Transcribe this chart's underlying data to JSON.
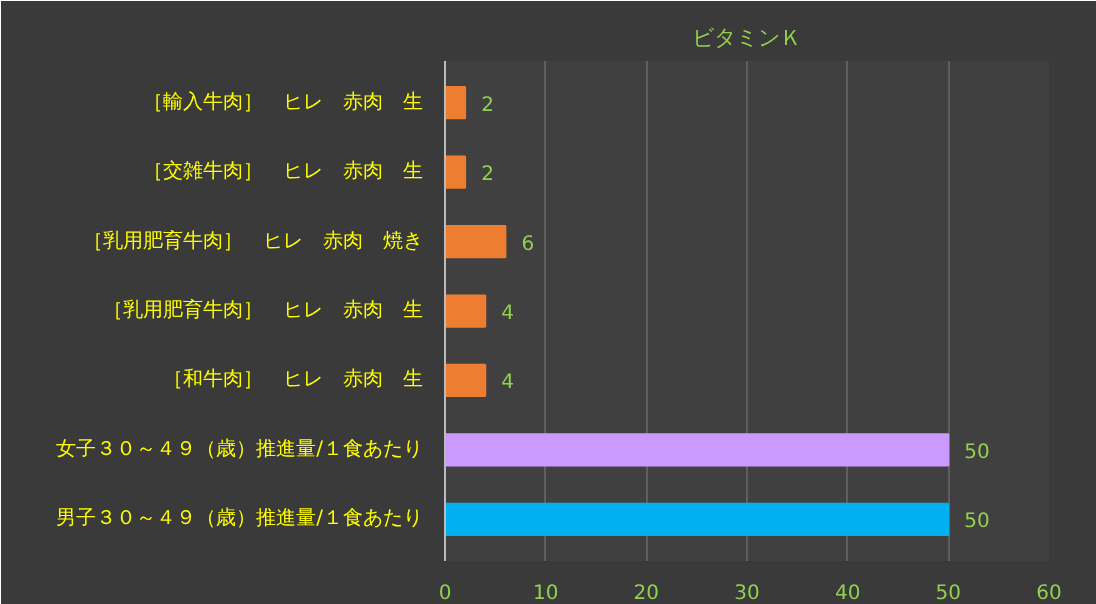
{
  "chart_data": {
    "type": "bar",
    "orientation": "horizontal",
    "title": "ビタミンＫ",
    "categories": [
      "［輸入牛肉］　ヒレ　赤肉　生",
      "［交雑牛肉］　ヒレ　赤肉　生",
      "［乳用肥育牛肉］　ヒレ　赤肉　焼き",
      "［乳用肥育牛肉］　ヒレ　赤肉　生",
      "［和牛肉］　ヒレ　赤肉　生",
      "女子３０～４９（歳）推進量/１食あたり",
      "男子３０～４９（歳）推進量/１食あたり"
    ],
    "values": [
      2,
      2,
      6,
      4,
      4,
      50,
      50
    ],
    "colors": [
      "#ed7d31",
      "#ed7d31",
      "#ed7d31",
      "#ed7d31",
      "#ed7d31",
      "#cc99ff",
      "#00b0f0"
    ],
    "xlim": [
      0,
      60
    ],
    "xticks": [
      0,
      10,
      20,
      30,
      40,
      50,
      60
    ],
    "grid": "x",
    "data_labels": true
  }
}
